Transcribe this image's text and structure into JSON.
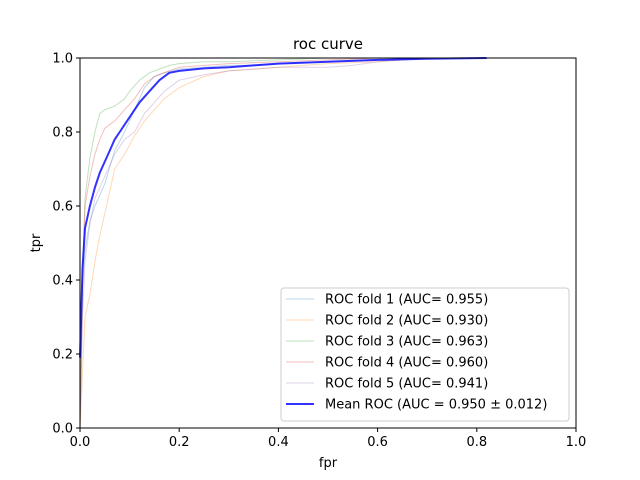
{
  "chart_data": {
    "type": "line",
    "title": "roc curve",
    "xlabel": "fpr",
    "ylabel": "tpr",
    "xlim": [
      0,
      1
    ],
    "ylim": [
      0,
      1
    ],
    "xticks": [
      "0.0",
      "0.2",
      "0.4",
      "0.6",
      "0.8",
      "1.0"
    ],
    "yticks": [
      "0.0",
      "0.2",
      "0.4",
      "0.6",
      "0.8",
      "1.0"
    ],
    "grid": false,
    "legend_position": "lower-right",
    "series": [
      {
        "name": "ROC fold 1 (AUC= 0.955)",
        "color": "#1f77b4",
        "x": [
          0,
          0.005,
          0.01,
          0.02,
          0.03,
          0.05,
          0.07,
          0.09,
          0.11,
          0.13,
          0.15,
          0.17,
          0.2,
          0.25,
          0.3,
          0.35,
          0.4,
          0.5,
          0.6,
          0.7,
          0.8,
          1.0
        ],
        "y": [
          0,
          0.38,
          0.48,
          0.56,
          0.6,
          0.66,
          0.75,
          0.8,
          0.86,
          0.92,
          0.95,
          0.96,
          0.97,
          0.975,
          0.98,
          0.98,
          0.985,
          0.99,
          0.995,
          1.0,
          1.0,
          1.0
        ]
      },
      {
        "name": "ROC fold 2 (AUC= 0.930)",
        "color": "#ff7f0e",
        "x": [
          0,
          0.01,
          0.02,
          0.03,
          0.04,
          0.05,
          0.06,
          0.07,
          0.09,
          0.11,
          0.13,
          0.15,
          0.17,
          0.2,
          0.25,
          0.3,
          0.4,
          0.5,
          0.6,
          0.7,
          0.8,
          1.0
        ],
        "y": [
          0,
          0.3,
          0.36,
          0.45,
          0.52,
          0.58,
          0.64,
          0.7,
          0.74,
          0.79,
          0.83,
          0.86,
          0.89,
          0.92,
          0.95,
          0.965,
          0.975,
          0.985,
          0.99,
          1.0,
          1.0,
          1.0
        ]
      },
      {
        "name": "ROC fold 3 (AUC= 0.963)",
        "color": "#2ca02c",
        "x": [
          0,
          0.005,
          0.01,
          0.02,
          0.03,
          0.04,
          0.05,
          0.07,
          0.09,
          0.1,
          0.12,
          0.14,
          0.16,
          0.18,
          0.2,
          0.25,
          0.3,
          0.4,
          0.5,
          0.6,
          0.7,
          1.0
        ],
        "y": [
          0,
          0.42,
          0.62,
          0.73,
          0.8,
          0.85,
          0.86,
          0.87,
          0.89,
          0.91,
          0.94,
          0.96,
          0.97,
          0.98,
          0.985,
          0.99,
          0.99,
          0.995,
          1.0,
          1.0,
          1.0,
          1.0
        ]
      },
      {
        "name": "ROC fold 4 (AUC= 0.960)",
        "color": "#d62728",
        "x": [
          0,
          0.005,
          0.01,
          0.02,
          0.03,
          0.04,
          0.05,
          0.07,
          0.09,
          0.11,
          0.13,
          0.15,
          0.18,
          0.2,
          0.25,
          0.3,
          0.4,
          0.5,
          0.6,
          0.7,
          0.8,
          1.0
        ],
        "y": [
          0,
          0.4,
          0.6,
          0.68,
          0.74,
          0.78,
          0.81,
          0.83,
          0.86,
          0.89,
          0.93,
          0.95,
          0.965,
          0.975,
          0.98,
          0.985,
          0.99,
          0.995,
          1.0,
          1.0,
          1.0,
          1.0
        ]
      },
      {
        "name": "ROC fold 5 (AUC= 0.941)",
        "color": "#9467bd",
        "x": [
          0,
          0.005,
          0.01,
          0.02,
          0.03,
          0.05,
          0.07,
          0.09,
          0.11,
          0.13,
          0.15,
          0.17,
          0.2,
          0.25,
          0.3,
          0.35,
          0.4,
          0.5,
          0.55,
          0.6,
          0.7,
          1.0
        ],
        "y": [
          0,
          0.3,
          0.45,
          0.55,
          0.62,
          0.68,
          0.74,
          0.78,
          0.8,
          0.85,
          0.88,
          0.91,
          0.94,
          0.955,
          0.965,
          0.97,
          0.975,
          0.975,
          0.98,
          0.99,
          1.0,
          1.0
        ]
      },
      {
        "name": "Mean ROC (AUC = 0.950 ± 0.012)",
        "color": "#0000ff",
        "x": [
          0,
          0.005,
          0.01,
          0.02,
          0.03,
          0.04,
          0.05,
          0.06,
          0.07,
          0.08,
          0.1,
          0.12,
          0.14,
          0.16,
          0.18,
          0.2,
          0.25,
          0.3,
          0.35,
          0.4,
          0.5,
          0.6,
          0.7,
          0.82
        ],
        "y": [
          0.19,
          0.43,
          0.54,
          0.6,
          0.65,
          0.69,
          0.72,
          0.75,
          0.78,
          0.8,
          0.84,
          0.88,
          0.91,
          0.94,
          0.96,
          0.965,
          0.972,
          0.975,
          0.98,
          0.985,
          0.99,
          0.995,
          0.998,
          1.0
        ]
      }
    ]
  }
}
